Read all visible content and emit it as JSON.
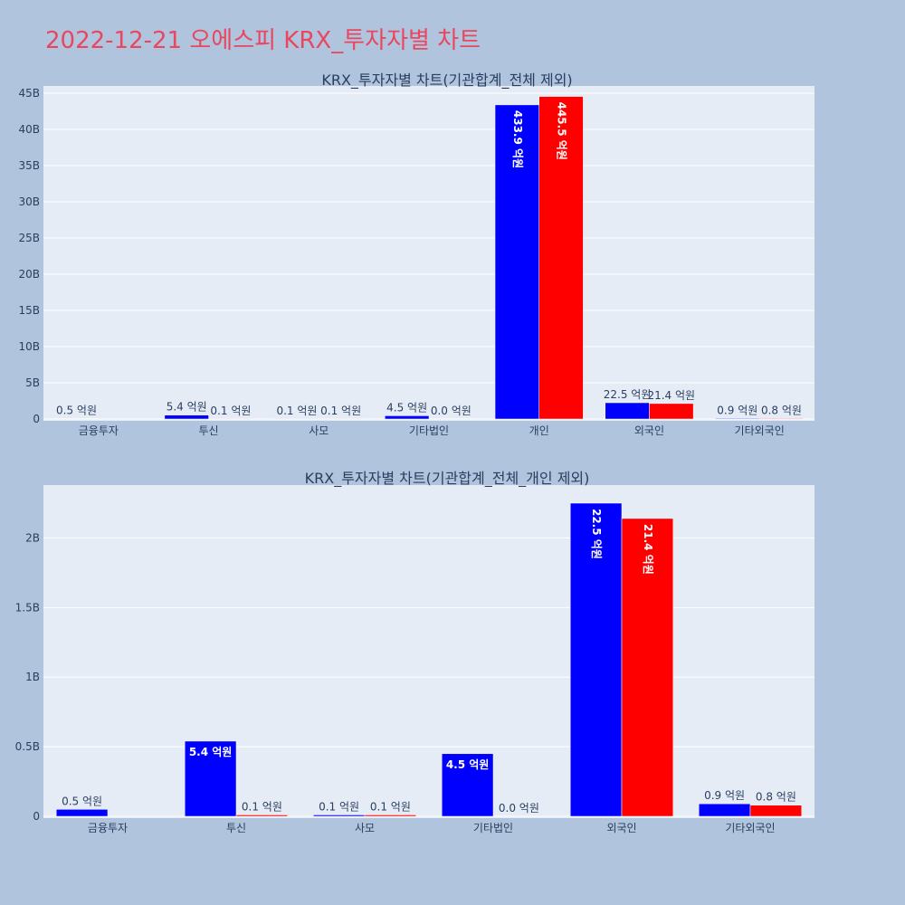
{
  "page_title": "2022-12-21 오에스피 KRX_투자자별 차트",
  "colors": {
    "series_a": "#0000ff",
    "series_b": "#ff0000",
    "plot_bg": "#e5ecf6",
    "page_bg": "#b0c4de",
    "title": "#e8475f"
  },
  "chart_data": [
    {
      "type": "bar",
      "title": "KRX_투자자별 차트(기관합계_전체 제외)",
      "categories": [
        "금융투자",
        "투신",
        "사모",
        "기타법인",
        "개인",
        "외국인",
        "기타외국인"
      ],
      "ylim": [
        0,
        46000000000
      ],
      "yticks": [
        0,
        5000000000,
        10000000000,
        15000000000,
        20000000000,
        25000000000,
        30000000000,
        35000000000,
        40000000000,
        45000000000
      ],
      "ytick_labels": [
        "0",
        "5B",
        "10B",
        "15B",
        "20B",
        "25B",
        "30B",
        "35B",
        "40B",
        "45B"
      ],
      "grid": true,
      "series": [
        {
          "color": "#0000ff",
          "values": [
            50000000,
            540000000,
            10000000,
            450000000,
            43390000000,
            2250000000,
            90000000
          ],
          "labels": [
            "0.5 억원",
            "5.4 억원",
            "0.1 억원",
            "4.5 억원",
            "433.9 억원",
            "22.5 억원",
            "0.9 억원"
          ]
        },
        {
          "color": "#ff0000",
          "values": [
            0,
            10000000,
            10000000,
            0,
            44550000000,
            2140000000,
            80000000
          ],
          "labels": [
            "",
            "0.1 억원",
            "0.1 억원",
            "0.0 억원",
            "445.5 억원",
            "21.4 억원",
            "0.8 억원"
          ]
        }
      ]
    },
    {
      "type": "bar",
      "title": "KRX_투자자별 차트(기관합계_전체_개인 제외)",
      "categories": [
        "금융투자",
        "투신",
        "사모",
        "기타법인",
        "외국인",
        "기타외국인"
      ],
      "ylim": [
        0,
        2380000000
      ],
      "yticks": [
        0,
        500000000,
        1000000000,
        1500000000,
        2000000000
      ],
      "ytick_labels": [
        "0",
        "0.5B",
        "1B",
        "1.5B",
        "2B"
      ],
      "grid": true,
      "series": [
        {
          "color": "#0000ff",
          "values": [
            50000000,
            540000000,
            10000000,
            450000000,
            2250000000,
            90000000
          ],
          "labels": [
            "0.5 억원",
            "5.4 억원",
            "0.1 억원",
            "4.5 억원",
            "22.5 억원",
            "0.9 억원"
          ]
        },
        {
          "color": "#ff0000",
          "values": [
            0,
            10000000,
            10000000,
            0,
            2140000000,
            80000000
          ],
          "labels": [
            "",
            "0.1 억원",
            "0.1 억원",
            "0.0 억원",
            "21.4 억원",
            "0.8 억원"
          ]
        }
      ]
    }
  ]
}
